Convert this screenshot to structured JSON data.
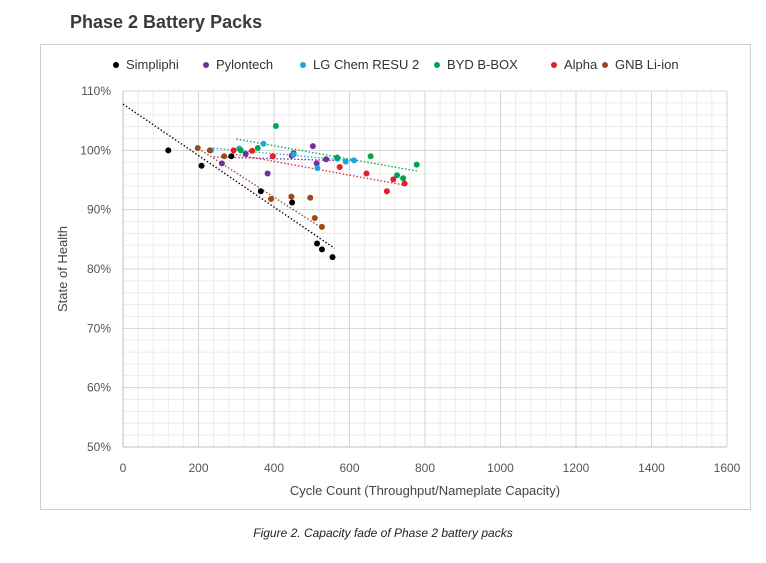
{
  "heading": "Phase 2 Battery Packs",
  "caption": "Figure 2. Capacity fade of Phase 2 battery packs",
  "chart_data": {
    "type": "scatter",
    "title": "",
    "xlabel": "Cycle Count (Throughput/Nameplate Capacity)",
    "ylabel": "State of Health",
    "xlim": [
      0,
      1600
    ],
    "ylim": [
      50,
      110
    ],
    "x_ticks": [
      "0",
      "200",
      "400",
      "600",
      "800",
      "1000",
      "1200",
      "1400",
      "1600"
    ],
    "y_ticks": [
      "50%",
      "60%",
      "70%",
      "80%",
      "90%",
      "100%",
      "110%"
    ],
    "grid": true,
    "legend_position": "top",
    "series": [
      {
        "name": "Simpliphi",
        "color": "#000000",
        "points": [
          [
            120,
            100.0
          ],
          [
            208,
            97.4
          ],
          [
            287,
            99.0
          ],
          [
            365,
            93.1
          ],
          [
            448,
            91.2
          ],
          [
            514,
            84.3
          ],
          [
            527,
            83.3
          ],
          [
            555,
            82.0
          ]
        ],
        "trend": [
          [
            0,
            107.8
          ],
          [
            560,
            83.5
          ]
        ]
      },
      {
        "name": "Pylontech",
        "color": "#7030a0",
        "points": [
          [
            262,
            97.8
          ],
          [
            325,
            99.4
          ],
          [
            383,
            96.1
          ],
          [
            447,
            99.1
          ],
          [
            452,
            99.5
          ],
          [
            503,
            100.7
          ],
          [
            513,
            97.8
          ],
          [
            538,
            98.5
          ]
        ],
        "trend": [
          [
            240,
            98.9
          ],
          [
            560,
            98.3
          ]
        ]
      },
      {
        "name": "LG Chem RESU 2",
        "color": "#17a9d8",
        "points": [
          [
            233,
            100.0
          ],
          [
            308,
            100.3
          ],
          [
            372,
            101.1
          ],
          [
            452,
            99.3
          ],
          [
            515,
            97.0
          ],
          [
            568,
            98.6
          ],
          [
            590,
            98.1
          ],
          [
            612,
            98.3
          ]
        ],
        "trend": [
          [
            230,
            100.4
          ],
          [
            620,
            98.2
          ]
        ]
      },
      {
        "name": "BYD B-BOX",
        "color": "#00a550",
        "points": [
          [
            312,
            100.0
          ],
          [
            357,
            100.4
          ],
          [
            405,
            104.1
          ],
          [
            567,
            98.8
          ],
          [
            656,
            99.0
          ],
          [
            726,
            95.8
          ],
          [
            742,
            95.3
          ],
          [
            778,
            97.6
          ]
        ],
        "trend": [
          [
            300,
            101.9
          ],
          [
            780,
            96.5
          ]
        ]
      },
      {
        "name": "Alpha",
        "color": "#e31e24",
        "points": [
          [
            293,
            100.0
          ],
          [
            342,
            99.9
          ],
          [
            397,
            99.0
          ],
          [
            574,
            97.2
          ],
          [
            645,
            96.1
          ],
          [
            699,
            93.1
          ],
          [
            716,
            95.1
          ],
          [
            746,
            94.4
          ]
        ],
        "trend": [
          [
            290,
            99.4
          ],
          [
            750,
            94.1
          ]
        ]
      },
      {
        "name": "GNB Li-ion",
        "color": "#9c4a1a",
        "points": [
          [
            198,
            100.4
          ],
          [
            230,
            100.0
          ],
          [
            268,
            99.0
          ],
          [
            392,
            91.8
          ],
          [
            446,
            92.2
          ],
          [
            496,
            92.0
          ],
          [
            508,
            88.6
          ],
          [
            527,
            87.1
          ]
        ],
        "trend": [
          [
            200,
            100.3
          ],
          [
            527,
            86.9
          ]
        ]
      }
    ]
  }
}
